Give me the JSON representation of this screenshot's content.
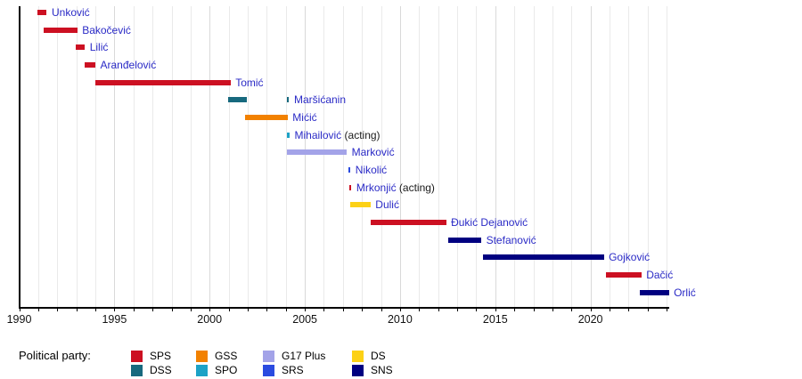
{
  "chart_data": {
    "type": "timeline",
    "description": "Gantt-style timeline of office holders colored by political party",
    "x_axis": {
      "min": 1990,
      "max": 2024.15,
      "major_ticks": [
        1990,
        1995,
        2000,
        2005,
        2010,
        2015,
        2020
      ],
      "minor_tick_interval": 1,
      "grid": true
    },
    "party_colors": {
      "SPS": "#cc1022",
      "DSS": "#17697e",
      "GSS": "#f28100",
      "SPO": "#1da2c6",
      "G17 Plus": "#a3a3e8",
      "SRS": "#2a4be0",
      "DS": "#fcd116",
      "SNS": "#000080"
    },
    "rows": [
      {
        "name": "Unković",
        "suffix": "",
        "party": "SPS",
        "segments": [
          [
            1990.95,
            1991.45
          ]
        ]
      },
      {
        "name": "Bakočević",
        "suffix": "",
        "party": "SPS",
        "segments": [
          [
            1991.27,
            1993.05
          ]
        ]
      },
      {
        "name": "Lilić",
        "suffix": "",
        "party": "SPS",
        "segments": [
          [
            1992.95,
            1993.45
          ]
        ]
      },
      {
        "name": "Aranđelović",
        "suffix": "",
        "party": "SPS",
        "segments": [
          [
            1993.43,
            1994.0
          ]
        ]
      },
      {
        "name": "Tomić",
        "suffix": "",
        "party": "SPS",
        "segments": [
          [
            1994.0,
            2001.1
          ]
        ]
      },
      {
        "name": "Maršićanin",
        "suffix": "",
        "party": "DSS",
        "segments": [
          [
            2000.95,
            2001.95
          ],
          [
            2004.05,
            2004.18
          ]
        ]
      },
      {
        "name": "Mićić",
        "suffix": "",
        "party": "GSS",
        "segments": [
          [
            2001.85,
            2004.1
          ]
        ]
      },
      {
        "name": "Mihailović",
        "suffix": " (acting)",
        "party": "SPO",
        "segments": [
          [
            2004.08,
            2004.2
          ]
        ]
      },
      {
        "name": "Marković",
        "suffix": "",
        "party": "G17 Plus",
        "segments": [
          [
            2004.05,
            2007.2
          ]
        ]
      },
      {
        "name": "Nikolić",
        "suffix": "",
        "party": "SRS",
        "segments": [
          [
            2007.3,
            2007.4
          ]
        ]
      },
      {
        "name": "Mrkonjić",
        "suffix": " (acting)",
        "party": "SPS",
        "segments": [
          [
            2007.35,
            2007.45
          ]
        ]
      },
      {
        "name": "Dulić",
        "suffix": "",
        "party": "DS",
        "segments": [
          [
            2007.37,
            2008.45
          ]
        ]
      },
      {
        "name": "Đukić Dejanović",
        "suffix": "",
        "party": "SPS",
        "segments": [
          [
            2008.45,
            2012.42
          ]
        ]
      },
      {
        "name": "Stefanović",
        "suffix": "",
        "party": "SNS",
        "segments": [
          [
            2012.55,
            2014.27
          ]
        ]
      },
      {
        "name": "Gojković",
        "suffix": "",
        "party": "SNS",
        "segments": [
          [
            2014.35,
            2020.7
          ]
        ]
      },
      {
        "name": "Dačić",
        "suffix": "",
        "party": "SPS",
        "segments": [
          [
            2020.8,
            2022.67
          ]
        ]
      },
      {
        "name": "Orlić",
        "suffix": "",
        "party": "SNS",
        "segments": [
          [
            2022.6,
            2024.12
          ]
        ]
      }
    ],
    "legend": {
      "title": "Political party:",
      "rows": [
        [
          "SPS",
          "GSS",
          "G17 Plus",
          "DS"
        ],
        [
          "DSS",
          "SPO",
          "SRS",
          "SNS"
        ]
      ]
    }
  }
}
